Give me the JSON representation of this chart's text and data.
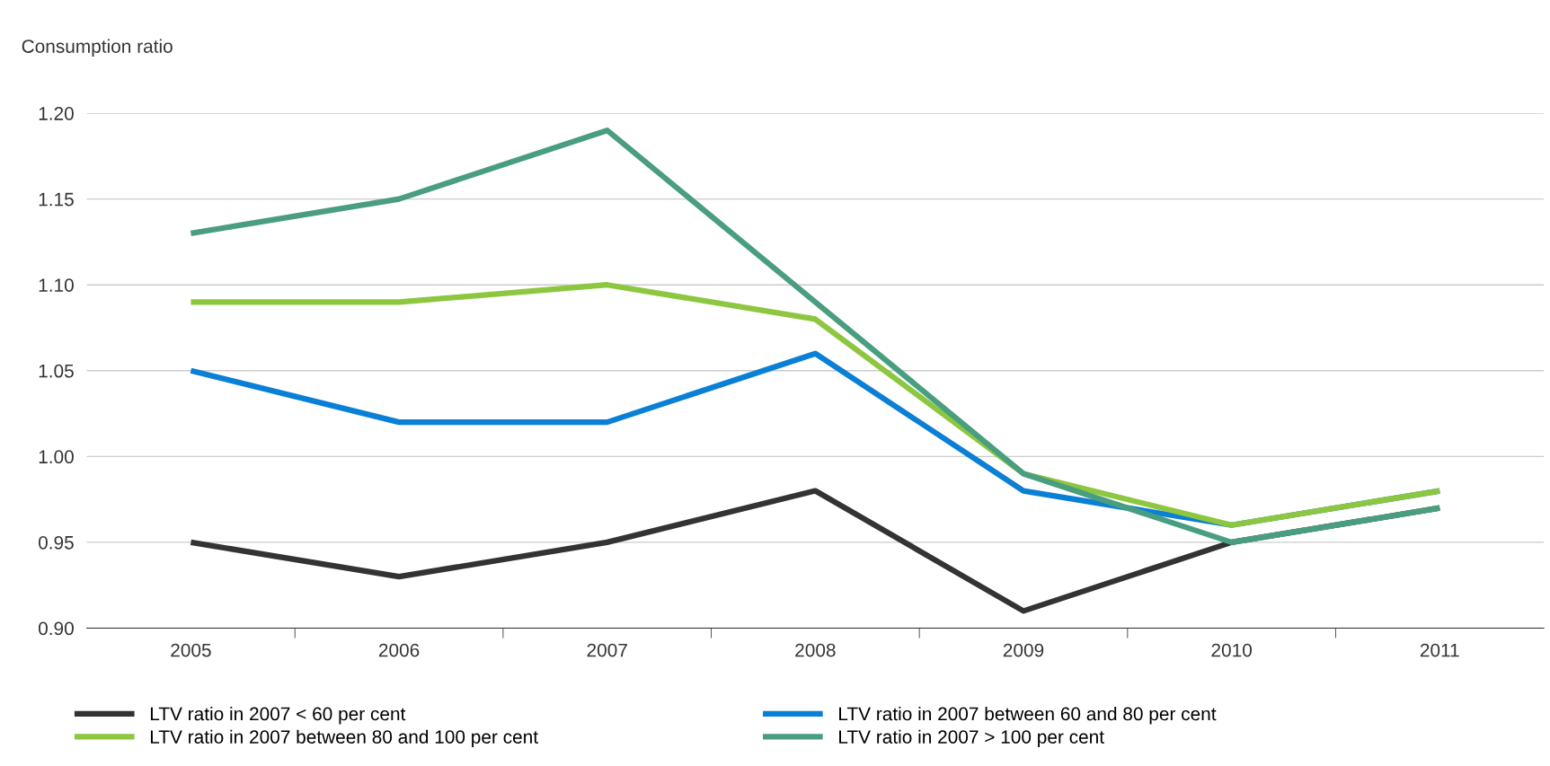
{
  "chart_data": {
    "type": "line",
    "ylabel": "Consumption ratio",
    "categories": [
      "2005",
      "2006",
      "2007",
      "2008",
      "2009",
      "2010",
      "2011"
    ],
    "series": [
      {
        "name": "LTV ratio in 2007 < 60 per cent",
        "color": "#333333",
        "values": [
          0.95,
          0.93,
          0.95,
          0.98,
          0.91,
          0.95,
          0.97
        ]
      },
      {
        "name": "LTV ratio in 2007 between 60 and 80 per cent",
        "color": "#0a7fd6",
        "values": [
          1.05,
          1.02,
          1.02,
          1.06,
          0.98,
          0.96,
          0.98
        ]
      },
      {
        "name": "LTV ratio in 2007 between 80 and 100 per cent",
        "color": "#8dc63f",
        "values": [
          1.09,
          1.09,
          1.1,
          1.08,
          0.99,
          0.96,
          0.98
        ]
      },
      {
        "name": "LTV ratio in 2007 > 100 per cent",
        "color": "#4a9e80",
        "values": [
          1.13,
          1.15,
          1.19,
          1.09,
          0.99,
          0.95,
          0.97
        ]
      }
    ],
    "ylim": [
      0.9,
      1.2
    ],
    "yticks": [
      {
        "value": 0.9,
        "label": "0.90"
      },
      {
        "value": 0.95,
        "label": "0.95"
      },
      {
        "value": 1.0,
        "label": "1.00"
      },
      {
        "value": 1.05,
        "label": "1.05"
      },
      {
        "value": 1.1,
        "label": "1.10"
      },
      {
        "value": 1.15,
        "label": "1.15"
      },
      {
        "value": 1.2,
        "label": "1.20"
      }
    ],
    "grid": "y",
    "legend": "bottom",
    "marker": "none",
    "line_style": "solid"
  }
}
